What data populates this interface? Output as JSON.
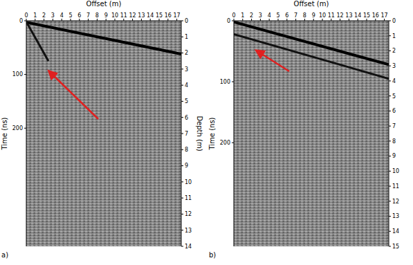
{
  "chart_data": [
    {
      "type": "line",
      "panel_label": "a)",
      "x_label": "Offset (m)",
      "y_label": "Time (ns)",
      "y2_label": "Depth (m)",
      "xlim": [
        0,
        17.5
      ],
      "xticks": [
        0,
        1,
        2,
        3,
        4,
        5,
        6,
        7,
        8,
        9,
        10,
        11,
        12,
        13,
        14,
        15,
        16,
        17
      ],
      "ylim": [
        0,
        420
      ],
      "yticks": [
        0,
        100,
        200
      ],
      "y2lim": [
        0,
        14
      ],
      "y2ticks": [
        0,
        1,
        2,
        3,
        4,
        5,
        6,
        7,
        8,
        9,
        10,
        11,
        12,
        13,
        14
      ],
      "grid": false,
      "series": [
        {
          "color": "#000000",
          "x": [
            0,
            17.5
          ],
          "values": [
            3,
            62
          ]
        },
        {
          "color": "#111111",
          "x": [
            0,
            2.5
          ],
          "values": [
            2,
            75
          ]
        }
      ]
    },
    {
      "type": "line",
      "panel_label": "b)",
      "x_label": "Offset (m)",
      "y_label": "Time (ns)",
      "xlim": [
        0,
        17.5
      ],
      "xticks": [
        0,
        1,
        2,
        3,
        4,
        5,
        6,
        7,
        8,
        9,
        10,
        11,
        12,
        13,
        14,
        15,
        16,
        17
      ],
      "ylim": [
        0,
        370
      ],
      "yticks": [
        0,
        100,
        200
      ],
      "y2lim": [
        0,
        15
      ],
      "y2ticks": [
        0,
        1,
        2,
        3,
        4,
        5,
        6,
        7,
        8,
        9,
        10,
        11,
        12,
        13,
        14,
        15
      ],
      "grid": false,
      "series": [
        {
          "color": "#000000",
          "x": [
            0,
            17.5
          ],
          "values": [
            2,
            72
          ]
        },
        {
          "color": "#111111",
          "x": [
            0,
            17.5
          ],
          "values": [
            22,
            95
          ]
        }
      ]
    }
  ]
}
